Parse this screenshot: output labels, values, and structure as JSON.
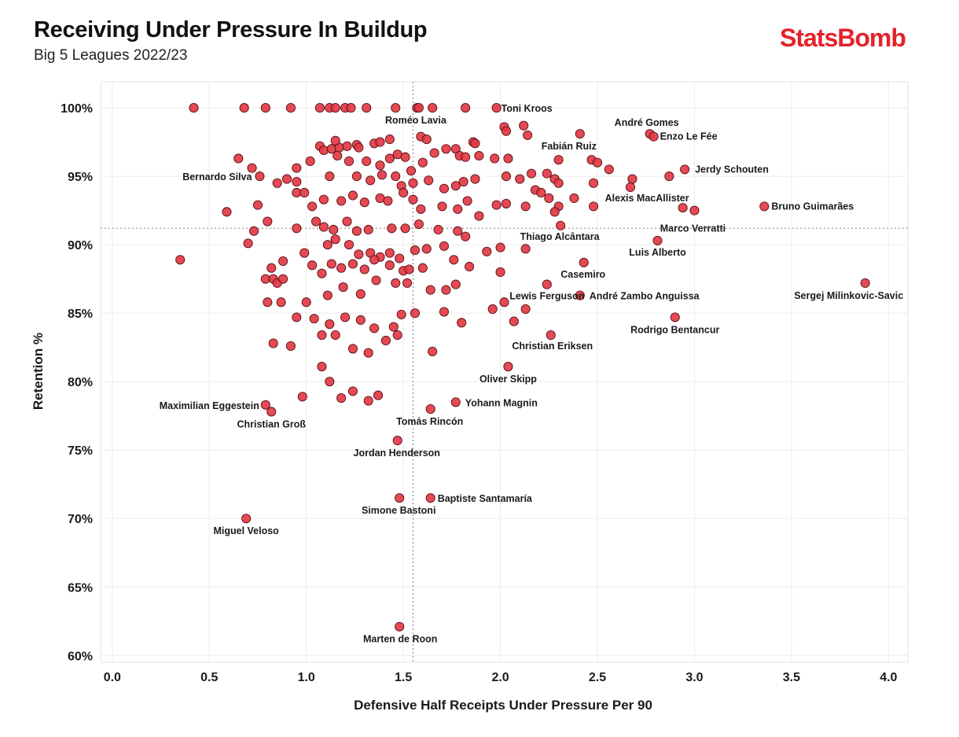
{
  "header": {
    "title": "Receiving Under Pressure In Buildup",
    "subtitle": "Big 5 Leagues 2022/23",
    "brand": "StatsBomb"
  },
  "colors": {
    "brand": "#e5222b",
    "point": "#e23a45",
    "point_stroke": "#5a1015"
  },
  "chart_data": {
    "type": "scatter",
    "xlabel": "Defensive Half Receipts Under Pressure Per 90",
    "ylabel": "Retention %",
    "xlim": [
      -0.06,
      4.1
    ],
    "ylim": [
      59.5,
      101.9
    ],
    "xticks": [
      0.0,
      0.5,
      1.0,
      1.5,
      2.0,
      2.5,
      3.0,
      3.5,
      4.0
    ],
    "xtick_labels": [
      "0.0",
      "0.5",
      "1.0",
      "1.5",
      "2.0",
      "2.5",
      "3.0",
      "3.5",
      "4.0"
    ],
    "yticks": [
      60,
      65,
      70,
      75,
      80,
      85,
      90,
      95,
      100
    ],
    "ytick_labels": [
      "60%",
      "65%",
      "70%",
      "75%",
      "80%",
      "85%",
      "90%",
      "95%",
      "100%"
    ],
    "grid": true,
    "reference_lines": {
      "x": 1.55,
      "y": 91.2
    },
    "labeled_points": [
      {
        "name": "Toni Kroos",
        "x": 1.98,
        "y": 100.0
      },
      {
        "name": "Roméo Lavia",
        "x": 1.58,
        "y": 100.0
      },
      {
        "name": "André Gomes",
        "x": 2.77,
        "y": 98.1
      },
      {
        "name": "Enzo Le Fée",
        "x": 2.79,
        "y": 97.9
      },
      {
        "name": "Fabián Ruiz",
        "x": 2.41,
        "y": 98.1
      },
      {
        "name": "Jerdy Schouten",
        "x": 2.95,
        "y": 95.5
      },
      {
        "name": "Bernardo Silva",
        "x": 0.76,
        "y": 95.0
      },
      {
        "name": "Alexis MacAllister",
        "x": 2.94,
        "y": 92.7
      },
      {
        "name": "Bruno Guimarães",
        "x": 3.36,
        "y": 92.8
      },
      {
        "name": "Marco Verratti",
        "x": 3.0,
        "y": 92.5
      },
      {
        "name": "Thiago Alcântara",
        "x": 2.31,
        "y": 91.4
      },
      {
        "name": "Luis Alberto",
        "x": 2.81,
        "y": 90.3
      },
      {
        "name": "Casemiro",
        "x": 2.43,
        "y": 88.7
      },
      {
        "name": "Sergej Milinkovic-Savic",
        "x": 3.88,
        "y": 87.2
      },
      {
        "name": "Lewis Ferguson",
        "x": 2.24,
        "y": 87.1
      },
      {
        "name": "André Zambo Anguissa",
        "x": 2.41,
        "y": 86.3
      },
      {
        "name": "Rodrigo Bentancur",
        "x": 2.9,
        "y": 84.7
      },
      {
        "name": "Christian Eriksen",
        "x": 2.26,
        "y": 83.4
      },
      {
        "name": "Oliver Skipp",
        "x": 2.04,
        "y": 81.1
      },
      {
        "name": "Maximilian Eggestein",
        "x": 0.79,
        "y": 78.3
      },
      {
        "name": "Christian Groß",
        "x": 0.82,
        "y": 77.8
      },
      {
        "name": "Yohann Magnin",
        "x": 1.77,
        "y": 78.5
      },
      {
        "name": "Tomás Rincón",
        "x": 1.64,
        "y": 78.0
      },
      {
        "name": "Jordan Henderson",
        "x": 1.47,
        "y": 75.7
      },
      {
        "name": "Baptiste Santamaría",
        "x": 1.64,
        "y": 71.5
      },
      {
        "name": "Simone Bastoni",
        "x": 1.48,
        "y": 71.5
      },
      {
        "name": "Miguel Veloso",
        "x": 0.69,
        "y": 70.0
      },
      {
        "name": "Marten de Roon",
        "x": 1.48,
        "y": 62.1
      }
    ],
    "points": [
      [
        0.42,
        100.0
      ],
      [
        0.68,
        100.0
      ],
      [
        0.79,
        100.0
      ],
      [
        0.92,
        100.0
      ],
      [
        1.07,
        100.0
      ],
      [
        1.12,
        100.0
      ],
      [
        1.15,
        100.0
      ],
      [
        1.2,
        100.0
      ],
      [
        1.23,
        100.0
      ],
      [
        1.31,
        100.0
      ],
      [
        1.46,
        100.0
      ],
      [
        1.57,
        100.0
      ],
      [
        1.65,
        100.0
      ],
      [
        1.82,
        100.0
      ],
      [
        2.02,
        98.6
      ],
      [
        2.03,
        98.3
      ],
      [
        2.12,
        98.7
      ],
      [
        2.14,
        98.0
      ],
      [
        1.59,
        97.9
      ],
      [
        1.62,
        97.7
      ],
      [
        1.86,
        97.5
      ],
      [
        1.87,
        97.4
      ],
      [
        1.07,
        97.2
      ],
      [
        1.09,
        96.9
      ],
      [
        1.13,
        97.0
      ],
      [
        1.17,
        97.1
      ],
      [
        1.21,
        97.2
      ],
      [
        1.26,
        97.3
      ],
      [
        1.27,
        97.1
      ],
      [
        1.35,
        97.4
      ],
      [
        1.38,
        97.5
      ],
      [
        1.43,
        97.7
      ],
      [
        1.15,
        97.6
      ],
      [
        1.66,
        96.7
      ],
      [
        1.72,
        97.0
      ],
      [
        1.77,
        97.0
      ],
      [
        1.79,
        96.5
      ],
      [
        1.82,
        96.4
      ],
      [
        1.89,
        96.5
      ],
      [
        0.65,
        96.3
      ],
      [
        0.72,
        95.6
      ],
      [
        0.95,
        95.6
      ],
      [
        1.02,
        96.1
      ],
      [
        1.16,
        96.5
      ],
      [
        1.22,
        96.1
      ],
      [
        1.31,
        96.1
      ],
      [
        1.38,
        95.8
      ],
      [
        1.43,
        96.3
      ],
      [
        1.47,
        96.6
      ],
      [
        1.51,
        96.4
      ],
      [
        1.54,
        95.4
      ],
      [
        1.6,
        96.0
      ],
      [
        1.97,
        96.3
      ],
      [
        2.04,
        96.3
      ],
      [
        2.3,
        96.2
      ],
      [
        2.47,
        96.2
      ],
      [
        2.5,
        96.0
      ],
      [
        2.56,
        95.5
      ],
      [
        0.9,
        94.8
      ],
      [
        0.95,
        94.6
      ],
      [
        1.12,
        95.0
      ],
      [
        1.26,
        95.0
      ],
      [
        1.33,
        94.7
      ],
      [
        1.39,
        95.1
      ],
      [
        1.46,
        95.0
      ],
      [
        1.49,
        94.3
      ],
      [
        1.55,
        94.5
      ],
      [
        1.63,
        94.7
      ],
      [
        1.71,
        94.1
      ],
      [
        1.77,
        94.3
      ],
      [
        1.81,
        94.6
      ],
      [
        1.87,
        94.8
      ],
      [
        2.03,
        95.0
      ],
      [
        2.1,
        94.8
      ],
      [
        2.16,
        95.2
      ],
      [
        2.24,
        95.2
      ],
      [
        2.28,
        94.8
      ],
      [
        2.3,
        94.5
      ],
      [
        2.48,
        94.5
      ],
      [
        2.68,
        94.8
      ],
      [
        2.87,
        95.0
      ],
      [
        0.75,
        92.9
      ],
      [
        0.59,
        92.4
      ],
      [
        0.85,
        94.5
      ],
      [
        0.95,
        93.8
      ],
      [
        0.99,
        93.8
      ],
      [
        1.03,
        92.8
      ],
      [
        1.09,
        93.3
      ],
      [
        1.18,
        93.2
      ],
      [
        1.24,
        93.6
      ],
      [
        1.3,
        93.1
      ],
      [
        1.38,
        93.4
      ],
      [
        1.42,
        93.2
      ],
      [
        1.5,
        93.8
      ],
      [
        1.55,
        93.3
      ],
      [
        1.59,
        92.6
      ],
      [
        1.7,
        92.8
      ],
      [
        1.78,
        92.6
      ],
      [
        1.83,
        93.2
      ],
      [
        1.89,
        92.1
      ],
      [
        1.98,
        92.9
      ],
      [
        2.03,
        93.0
      ],
      [
        2.13,
        92.8
      ],
      [
        2.18,
        94.0
      ],
      [
        2.21,
        93.8
      ],
      [
        2.25,
        93.4
      ],
      [
        2.3,
        92.8
      ],
      [
        2.38,
        93.4
      ],
      [
        2.48,
        92.8
      ],
      [
        2.67,
        94.2
      ],
      [
        2.28,
        92.4
      ],
      [
        0.7,
        90.1
      ],
      [
        0.73,
        91.0
      ],
      [
        0.8,
        91.7
      ],
      [
        0.95,
        91.2
      ],
      [
        1.05,
        91.7
      ],
      [
        1.09,
        91.3
      ],
      [
        1.14,
        91.1
      ],
      [
        1.21,
        91.7
      ],
      [
        1.26,
        91.0
      ],
      [
        1.32,
        91.1
      ],
      [
        1.44,
        91.2
      ],
      [
        1.51,
        91.2
      ],
      [
        1.58,
        91.5
      ],
      [
        1.68,
        91.1
      ],
      [
        1.78,
        91.0
      ],
      [
        1.82,
        90.6
      ],
      [
        1.11,
        90.0
      ],
      [
        1.15,
        90.4
      ],
      [
        1.22,
        90.0
      ],
      [
        1.27,
        89.3
      ],
      [
        1.33,
        89.4
      ],
      [
        1.38,
        89.1
      ],
      [
        1.43,
        89.4
      ],
      [
        1.48,
        89.0
      ],
      [
        1.56,
        89.6
      ],
      [
        1.62,
        89.7
      ],
      [
        1.71,
        89.9
      ],
      [
        1.76,
        88.9
      ],
      [
        1.84,
        88.4
      ],
      [
        1.93,
        89.5
      ],
      [
        2.0,
        89.8
      ],
      [
        2.13,
        89.7
      ],
      [
        0.35,
        88.9
      ],
      [
        0.82,
        88.3
      ],
      [
        0.88,
        88.8
      ],
      [
        0.99,
        89.4
      ],
      [
        1.03,
        88.5
      ],
      [
        1.08,
        87.9
      ],
      [
        1.13,
        88.6
      ],
      [
        1.18,
        88.3
      ],
      [
        1.24,
        88.6
      ],
      [
        1.3,
        88.2
      ],
      [
        1.35,
        88.9
      ],
      [
        1.43,
        88.5
      ],
      [
        1.5,
        88.1
      ],
      [
        1.53,
        88.2
      ],
      [
        1.6,
        88.3
      ],
      [
        0.79,
        87.5
      ],
      [
        0.83,
        87.5
      ],
      [
        0.85,
        87.2
      ],
      [
        0.88,
        87.5
      ],
      [
        1.0,
        85.8
      ],
      [
        1.11,
        86.3
      ],
      [
        1.19,
        86.9
      ],
      [
        1.28,
        86.4
      ],
      [
        1.36,
        87.4
      ],
      [
        1.46,
        87.2
      ],
      [
        1.52,
        87.2
      ],
      [
        1.64,
        86.7
      ],
      [
        1.72,
        86.7
      ],
      [
        1.77,
        87.1
      ],
      [
        2.0,
        88.0
      ],
      [
        0.8,
        85.8
      ],
      [
        0.87,
        85.8
      ],
      [
        0.95,
        84.7
      ],
      [
        1.04,
        84.6
      ],
      [
        1.12,
        84.2
      ],
      [
        1.2,
        84.7
      ],
      [
        1.28,
        84.5
      ],
      [
        1.35,
        83.9
      ],
      [
        1.45,
        84.0
      ],
      [
        1.49,
        84.9
      ],
      [
        1.56,
        85.0
      ],
      [
        1.71,
        85.1
      ],
      [
        1.8,
        84.3
      ],
      [
        1.96,
        85.3
      ],
      [
        2.02,
        85.8
      ],
      [
        2.13,
        85.3
      ],
      [
        0.83,
        82.8
      ],
      [
        0.92,
        82.6
      ],
      [
        1.08,
        83.4
      ],
      [
        1.15,
        83.4
      ],
      [
        1.24,
        82.4
      ],
      [
        1.32,
        82.1
      ],
      [
        1.41,
        83.0
      ],
      [
        1.47,
        83.4
      ],
      [
        1.65,
        82.2
      ],
      [
        2.07,
        84.4
      ],
      [
        1.08,
        81.1
      ],
      [
        1.12,
        80.0
      ],
      [
        1.18,
        78.8
      ],
      [
        1.24,
        79.3
      ],
      [
        1.32,
        78.6
      ],
      [
        1.37,
        79.0
      ],
      [
        0.98,
        78.9
      ]
    ]
  }
}
